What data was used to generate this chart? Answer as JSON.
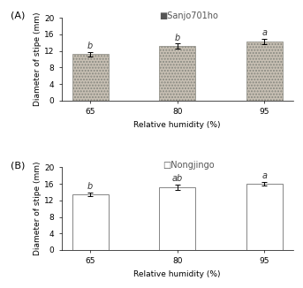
{
  "panel_A": {
    "title": "Sanjo701ho",
    "title_marker": "■",
    "categories": [
      "65",
      "80",
      "95"
    ],
    "values": [
      11.2,
      13.2,
      14.3
    ],
    "errors": [
      0.5,
      0.55,
      0.65
    ],
    "letters": [
      "b",
      "b",
      "a"
    ],
    "ylabel": "Diameter of stipe (mm)",
    "xlabel": "Relative humidity (%)",
    "ylim": [
      0,
      20
    ],
    "yticks": [
      0,
      4,
      8,
      12,
      16,
      20
    ],
    "bar_color": "#c8c0b4",
    "hatch": ".....",
    "edgecolor": "#888880"
  },
  "panel_B": {
    "title": "Nongjingo",
    "title_marker": "□",
    "categories": [
      "65",
      "80",
      "95"
    ],
    "values": [
      13.5,
      15.2,
      16.1
    ],
    "errors": [
      0.4,
      0.55,
      0.45
    ],
    "letters": [
      "b",
      "ab",
      "a"
    ],
    "ylabel": "Diameter of stipe (mm)",
    "xlabel": "Relative humidity (%)",
    "ylim": [
      0,
      20
    ],
    "yticks": [
      0,
      4,
      8,
      12,
      16,
      20
    ],
    "bar_color": "#ffffff",
    "hatch": "",
    "edgecolor": "#555555"
  },
  "label_A": "(A)",
  "label_B": "(B)",
  "letter_fontsize": 7,
  "axis_fontsize": 6.5,
  "tick_fontsize": 6.5,
  "title_fontsize": 7,
  "panel_label_fontsize": 8
}
